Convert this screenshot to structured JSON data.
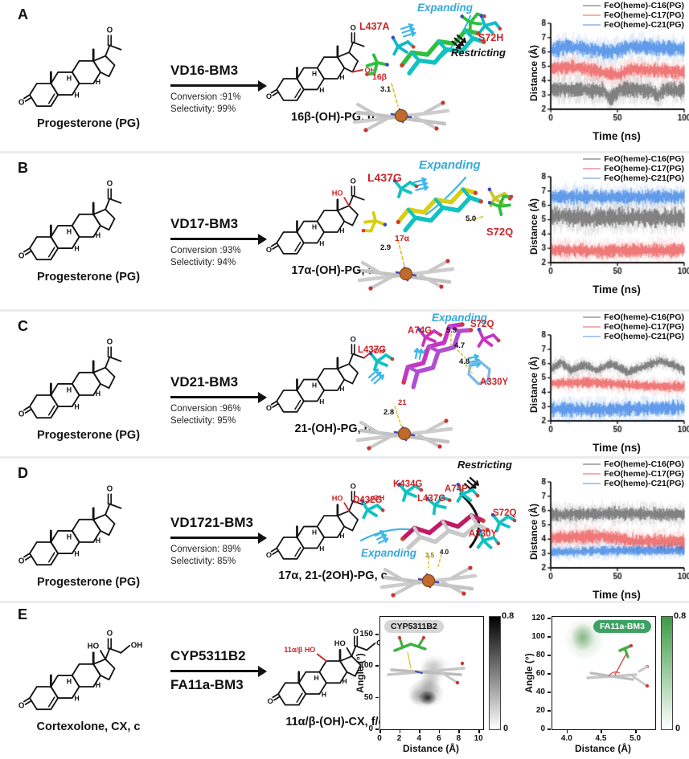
{
  "shared": {
    "legend": [
      "FeO(heme)-C16(PG)",
      "FeO(heme)-C17(PG)",
      "FeO(heme)-C21(PG)"
    ],
    "chart_xlabel": "Time (ns)",
    "chart_ylabel": "Distance (Å)",
    "yticks": [
      "2",
      "3",
      "4",
      "5",
      "6",
      "7",
      "8"
    ],
    "xticks": [
      "0",
      "50",
      "100"
    ],
    "mol": {
      "o": "O",
      "h": "H",
      "oh": "OH",
      "ho": "HO"
    }
  },
  "colors": {
    "c16": "#4a4a4a",
    "c17": "#e83c3c",
    "c21": "#1d6ee0",
    "legend16": "#b0b0b0",
    "legend17": "#f0b1ad",
    "legend21": "#a9c7ec",
    "red_label": "#cb2427",
    "cyan_label": "#36a9da",
    "badge_gray": "#d6d6d6",
    "badge_green": "#3ea164"
  },
  "panels": [
    {
      "letter": "A",
      "substrate": "Progesterone (PG)",
      "enzyme": "VD16-BM3",
      "conversion": "Conversion :91%",
      "selectivity": "Selectivity: 99%",
      "product": "16β-(OH)-PG, d",
      "md": {
        "expanding": "Expanding",
        "restricting": "Restricting",
        "res1": "L437A",
        "res2": "S72H",
        "site": "16β",
        "d1": "3.1"
      }
    },
    {
      "letter": "B",
      "substrate": "Progesterone (PG)",
      "enzyme": "VD17-BM3",
      "conversion": "Conversion :93%",
      "selectivity": "Selectivity: 94%",
      "product": "17α-(OH)-PG, a",
      "md": {
        "expanding": "Expanding",
        "res1": "L437G",
        "res2": "S72Q",
        "site": "17α",
        "d1": "2.9",
        "d2": "5.0"
      }
    },
    {
      "letter": "C",
      "substrate": "Progesterone (PG)",
      "enzyme": "VD21-BM3",
      "conversion": "Conversion :96%",
      "selectivity": "Selectivity: 95%",
      "product": "21-(OH)-PG, b",
      "md": {
        "expanding": "Expanding",
        "res1": "A74G",
        "res2": "S72Q",
        "res3": "L437G",
        "res4": "A330Y",
        "d1": "5.9",
        "d2": "4.7",
        "d3": "4.8",
        "site": "21",
        "d4": "2.8"
      }
    },
    {
      "letter": "D",
      "substrate": "Progesterone (PG)",
      "enzyme": "VD1721-BM3",
      "conversion": "Conversion: 89%",
      "selectivity": "Selectivity: 85%",
      "product": "17α, 21-(2OH)-PG, c",
      "md": {
        "expanding": "Expanding",
        "restricting": "Restricting",
        "res1": "D432G",
        "res2": "K434G",
        "res3": "L437G",
        "res4": "A74P",
        "res5": "S72Q",
        "res6": "A330Y",
        "d1": "3.5",
        "d2": "4.0"
      }
    },
    {
      "letter": "E",
      "substrate": "Cortexolone, CX, c",
      "enzyme": "CYP5311B2",
      "enzyme2": "FA11a-BM3",
      "product": "11α/β-(OH)-CX, f/e",
      "red_label": "11α/β HO"
    }
  ],
  "heatmaps": {
    "left": {
      "badge": "CYP5311B2",
      "xlabel": "Distance (Å)",
      "ylabel": "Angle (°)",
      "xticks": [
        "0",
        "2",
        "4",
        "6",
        "8",
        "10"
      ],
      "yticks": [
        "0",
        "50",
        "100",
        "150"
      ],
      "cmax": "0.8",
      "cmin": "0"
    },
    "right": {
      "badge": "FA11a-BM3",
      "xlabel": "Distance (Å)",
      "ylabel": "Angle (°)",
      "xticks": [
        "4.0",
        "4.5",
        "5.0"
      ],
      "yticks": [
        "0",
        "20",
        "40",
        "60",
        "80",
        "100",
        "120"
      ],
      "cmax": "0.8",
      "cmin": "0"
    }
  },
  "chart_data": [
    {
      "panel": "A",
      "type": "line",
      "xlabel": "Time (ns)",
      "ylabel": "Distance (Å)",
      "xlim": [
        0,
        100
      ],
      "ylim": [
        2,
        8
      ],
      "grid": false,
      "legend_position": "top-right",
      "series": [
        {
          "name": "FeO(heme)-C16(PG)",
          "color": "#4a4a4a",
          "noise": 0.42,
          "profile": [
            [
              0,
              3.4
            ],
            [
              40,
              3.3
            ],
            [
              45,
              2.7
            ],
            [
              52,
              3.4
            ],
            [
              76,
              3.3
            ],
            [
              80,
              2.9
            ],
            [
              86,
              3.4
            ],
            [
              100,
              3.3
            ]
          ]
        },
        {
          "name": "FeO(heme)-C17(PG)",
          "color": "#e83c3c",
          "noise": 0.38,
          "profile": [
            [
              0,
              4.8
            ],
            [
              15,
              5.0
            ],
            [
              50,
              4.4
            ],
            [
              60,
              4.8
            ],
            [
              100,
              4.6
            ]
          ]
        },
        {
          "name": "FeO(heme)-C21(PG)",
          "color": "#1d6ee0",
          "noise": 0.42,
          "profile": [
            [
              0,
              6.1
            ],
            [
              12,
              6.4
            ],
            [
              45,
              6.0
            ],
            [
              60,
              6.4
            ],
            [
              100,
              6.2
            ]
          ]
        }
      ]
    },
    {
      "panel": "B",
      "type": "line",
      "xlabel": "Time (ns)",
      "ylabel": "Distance (Å)",
      "xlim": [
        0,
        100
      ],
      "ylim": [
        2,
        8
      ],
      "grid": false,
      "legend_position": "top-right",
      "series": [
        {
          "name": "FeO(heme)-C16(PG)",
          "color": "#4a4a4a",
          "noise": 0.5,
          "profile": [
            [
              0,
              5.3
            ],
            [
              30,
              5.1
            ],
            [
              60,
              5.2
            ],
            [
              100,
              5.1
            ]
          ]
        },
        {
          "name": "FeO(heme)-C17(PG)",
          "color": "#e83c3c",
          "noise": 0.38,
          "profile": [
            [
              0,
              2.9
            ],
            [
              40,
              2.8
            ],
            [
              100,
              2.9
            ]
          ]
        },
        {
          "name": "FeO(heme)-C21(PG)",
          "color": "#1d6ee0",
          "noise": 0.38,
          "profile": [
            [
              0,
              6.6
            ],
            [
              50,
              6.6
            ],
            [
              100,
              6.6
            ]
          ]
        }
      ]
    },
    {
      "panel": "C",
      "type": "line",
      "xlabel": "Time (ns)",
      "ylabel": "Distance (Å)",
      "xlim": [
        0,
        100
      ],
      "ylim": [
        2,
        8
      ],
      "grid": false,
      "legend_position": "top-right",
      "series": [
        {
          "name": "FeO(heme)-C16(PG)",
          "color": "#4a4a4a",
          "noise": 0.24,
          "profile": [
            [
              0,
              5.6
            ],
            [
              8,
              6.1
            ],
            [
              15,
              5.5
            ],
            [
              25,
              5.9
            ],
            [
              35,
              5.5
            ],
            [
              45,
              6.0
            ],
            [
              58,
              5.4
            ],
            [
              70,
              5.8
            ],
            [
              82,
              6.2
            ],
            [
              92,
              5.9
            ],
            [
              100,
              5.5
            ]
          ]
        },
        {
          "name": "FeO(heme)-C17(PG)",
          "color": "#e83c3c",
          "noise": 0.28,
          "profile": [
            [
              0,
              4.6
            ],
            [
              30,
              4.7
            ],
            [
              60,
              4.5
            ],
            [
              85,
              4.4
            ],
            [
              100,
              4.4
            ]
          ]
        },
        {
          "name": "FeO(heme)-C21(PG)",
          "color": "#1d6ee0",
          "noise": 0.4,
          "profile": [
            [
              0,
              2.8
            ],
            [
              50,
              2.8
            ],
            [
              100,
              2.9
            ]
          ]
        }
      ]
    },
    {
      "panel": "D",
      "type": "line",
      "xlabel": "Time (ns)",
      "ylabel": "Distance (Å)",
      "xlim": [
        0,
        100
      ],
      "ylim": [
        2,
        8
      ],
      "grid": false,
      "legend_position": "top-right",
      "series": [
        {
          "name": "FeO(heme)-C16(PG)",
          "color": "#4a4a4a",
          "noise": 0.35,
          "profile": [
            [
              0,
              5.7
            ],
            [
              50,
              5.8
            ],
            [
              100,
              5.7
            ]
          ]
        },
        {
          "name": "FeO(heme)-C17(PG)",
          "color": "#e83c3c",
          "noise": 0.38,
          "profile": [
            [
              0,
              4.1
            ],
            [
              40,
              4.2
            ],
            [
              60,
              3.9
            ],
            [
              100,
              3.8
            ]
          ]
        },
        {
          "name": "FeO(heme)-C21(PG)",
          "color": "#1d6ee0",
          "noise": 0.26,
          "profile": [
            [
              0,
              3.1
            ],
            [
              50,
              3.2
            ],
            [
              100,
              3.2
            ]
          ]
        }
      ]
    },
    {
      "panel": "E-left",
      "type": "heatmap",
      "title": "CYP5311B2",
      "xlabel": "Distance (Å)",
      "ylabel": "Angle (°)",
      "xlim": [
        0,
        10.4
      ],
      "ylim": [
        0,
        178
      ],
      "colorbar": [
        0,
        0.8
      ],
      "color": "black",
      "peaks": [
        {
          "x": 4.8,
          "y": 50,
          "intensity": 0.85,
          "sx": 0.55,
          "sy": 7
        },
        {
          "x": 4.6,
          "y": 57,
          "intensity": 0.35,
          "sx": 1.1,
          "sy": 14
        },
        {
          "x": 5.0,
          "y": 72,
          "intensity": 0.22,
          "sx": 0.7,
          "sy": 12
        },
        {
          "x": 5.3,
          "y": 92,
          "intensity": 0.2,
          "sx": 0.8,
          "sy": 12
        },
        {
          "x": 5.5,
          "y": 102,
          "intensity": 0.12,
          "sx": 0.9,
          "sy": 10
        },
        {
          "x": 3.9,
          "y": 52,
          "intensity": 0.2,
          "sx": 0.6,
          "sy": 8
        }
      ]
    },
    {
      "panel": "E-right",
      "type": "heatmap",
      "title": "FA11a-BM3",
      "xlabel": "Distance (Å)",
      "ylabel": "Angle (°)",
      "xlim": [
        3.78,
        5.28
      ],
      "ylim": [
        0,
        122
      ],
      "colorbar": [
        0,
        0.8
      ],
      "color": "green",
      "peaks": [
        {
          "x": 4.22,
          "y": 100,
          "intensity": 0.5,
          "sx": 0.1,
          "sy": 9
        },
        {
          "x": 4.25,
          "y": 98,
          "intensity": 0.25,
          "sx": 0.18,
          "sy": 14
        }
      ]
    }
  ]
}
